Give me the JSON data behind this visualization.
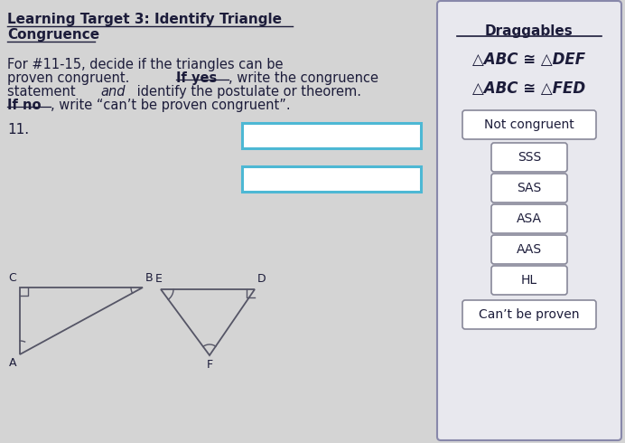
{
  "bg_color": "#d4d4d4",
  "right_panel_bg": "#e8e8ee",
  "right_panel_border": "#8888aa",
  "title_line1": "Learning Target 3: Identify Triangle",
  "title_line2": "Congruence",
  "number": "11.",
  "draggables_title": "Draggables",
  "drag_items_bold": [
    "△ABC ≅ △DEF",
    "△ABC ≅ △FED"
  ],
  "drag_buttons": [
    "Not congruent",
    "SSS",
    "SAS",
    "ASA",
    "AAS",
    "HL",
    "Can’t be proven"
  ],
  "answer_box_color": "#4db8d4",
  "font_color_dark": "#1c1c3a",
  "tri_color": "#555566"
}
